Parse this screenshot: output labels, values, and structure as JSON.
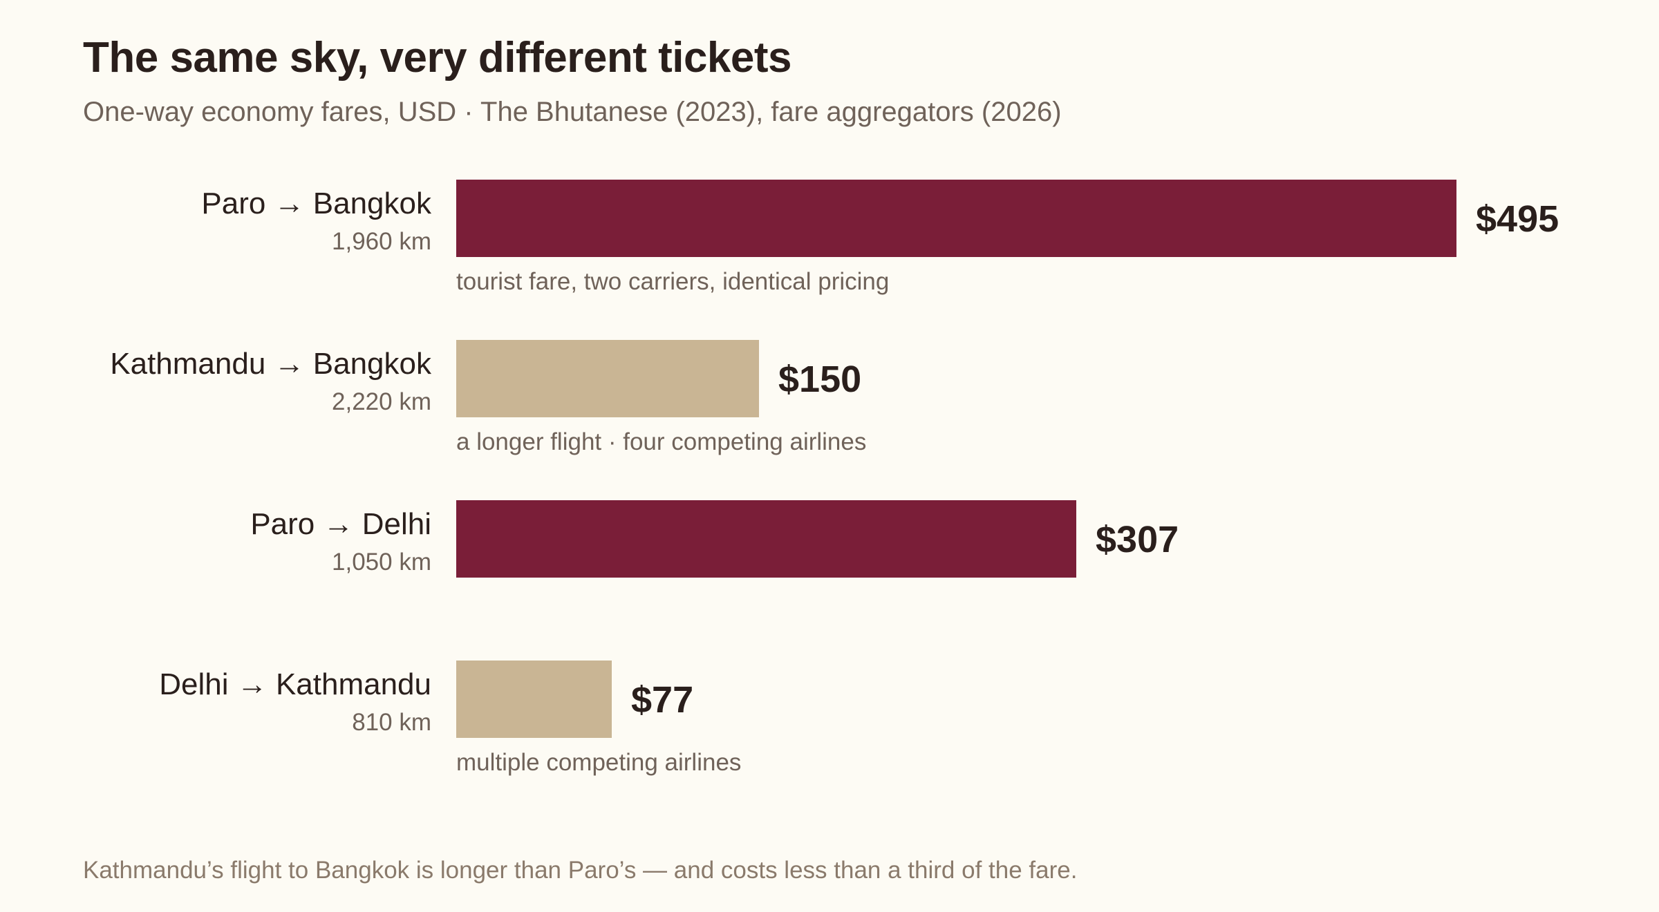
{
  "header": {
    "title": "The same sky, very different tickets",
    "subtitle": "One-way economy fares, USD · The Bhutanese (2023), fare aggregators (2026)"
  },
  "footer": {
    "note": "Kathmandu’s flight to Bangkok is longer than Paro’s — and costs less than a third of the fare."
  },
  "colors": {
    "background": "#fdfbf4",
    "highlight": "#7a1e38",
    "comparison": "#c9b594"
  },
  "chart_data": {
    "type": "bar",
    "orientation": "horizontal",
    "unit": "USD",
    "xlim": [
      0,
      495
    ],
    "grid": false,
    "legend": "none",
    "categories": [
      "Paro → Bangkok",
      "Kathmandu → Bangkok",
      "Paro → Delhi",
      "Delhi → Kathmandu"
    ],
    "values": [
      495,
      150,
      307,
      77
    ],
    "rows": [
      {
        "route": "Paro → Bangkok",
        "distance": "1,960 km",
        "value": 495,
        "value_label": "$495",
        "note": "tourist fare, two carriers, identical pricing",
        "group": "highlight"
      },
      {
        "route": "Kathmandu → Bangkok",
        "distance": "2,220 km",
        "value": 150,
        "value_label": "$150",
        "note": "a longer flight · four competing airlines",
        "group": "comparison"
      },
      {
        "route": "Paro → Delhi",
        "distance": "1,050 km",
        "value": 307,
        "value_label": "$307",
        "note": "",
        "group": "highlight"
      },
      {
        "route": "Delhi → Kathmandu",
        "distance": "810 km",
        "value": 77,
        "value_label": "$77",
        "note": "multiple competing airlines",
        "group": "comparison"
      }
    ]
  }
}
